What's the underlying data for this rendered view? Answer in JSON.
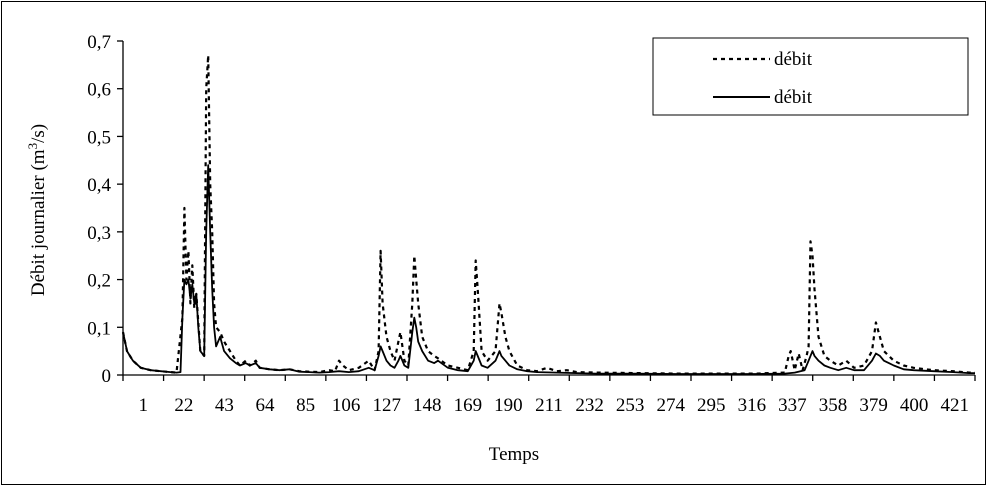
{
  "chart_data": {
    "type": "line",
    "title": "",
    "xlabel": "Temps",
    "ylabel_main": "Débit journalier (m",
    "ylabel_sup": "3",
    "ylabel_tail": "/s)",
    "x_tick_labels": [
      "1",
      "22",
      "43",
      "64",
      "85",
      "106",
      "127",
      "148",
      "169",
      "190",
      "211",
      "232",
      "253",
      "274",
      "295",
      "316",
      "337",
      "358",
      "379",
      "400",
      "421"
    ],
    "y_tick_labels": [
      "0",
      "0,1",
      "0,2",
      "0,3",
      "0,4",
      "0,5",
      "0,6",
      "0,7"
    ],
    "xlim": [
      1,
      431
    ],
    "ylim": [
      0,
      0.7
    ],
    "grid": false,
    "legend_position": "top-right",
    "series": [
      {
        "name": "débit",
        "style": "dashed",
        "points": [
          [
            1,
            0.09
          ],
          [
            3,
            0.05
          ],
          [
            6,
            0.03
          ],
          [
            10,
            0.015
          ],
          [
            15,
            0.01
          ],
          [
            20,
            0.008
          ],
          [
            25,
            0.006
          ],
          [
            28,
            0.005
          ],
          [
            31,
            0.12
          ],
          [
            32,
            0.35
          ],
          [
            33,
            0.2
          ],
          [
            34,
            0.26
          ],
          [
            35,
            0.15
          ],
          [
            36,
            0.23
          ],
          [
            37,
            0.14
          ],
          [
            38,
            0.17
          ],
          [
            40,
            0.05
          ],
          [
            42,
            0.04
          ],
          [
            43,
            0.6
          ],
          [
            44,
            0.67
          ],
          [
            45,
            0.4
          ],
          [
            46,
            0.3
          ],
          [
            47,
            0.15
          ],
          [
            48,
            0.1
          ],
          [
            50,
            0.09
          ],
          [
            52,
            0.07
          ],
          [
            55,
            0.05
          ],
          [
            58,
            0.03
          ],
          [
            60,
            0.02
          ],
          [
            63,
            0.03
          ],
          [
            65,
            0.02
          ],
          [
            68,
            0.03
          ],
          [
            70,
            0.015
          ],
          [
            75,
            0.012
          ],
          [
            80,
            0.01
          ],
          [
            85,
            0.012
          ],
          [
            90,
            0.008
          ],
          [
            95,
            0.007
          ],
          [
            100,
            0.006
          ],
          [
            105,
            0.01
          ],
          [
            108,
            0.008
          ],
          [
            110,
            0.03
          ],
          [
            112,
            0.02
          ],
          [
            115,
            0.01
          ],
          [
            120,
            0.015
          ],
          [
            125,
            0.03
          ],
          [
            128,
            0.01
          ],
          [
            130,
            0.05
          ],
          [
            131,
            0.26
          ],
          [
            132,
            0.15
          ],
          [
            134,
            0.08
          ],
          [
            136,
            0.05
          ],
          [
            138,
            0.03
          ],
          [
            140,
            0.07
          ],
          [
            141,
            0.09
          ],
          [
            143,
            0.03
          ],
          [
            145,
            0.02
          ],
          [
            147,
            0.15
          ],
          [
            148,
            0.25
          ],
          [
            149,
            0.2
          ],
          [
            150,
            0.15
          ],
          [
            152,
            0.08
          ],
          [
            155,
            0.05
          ],
          [
            158,
            0.04
          ],
          [
            160,
            0.035
          ],
          [
            165,
            0.02
          ],
          [
            170,
            0.015
          ],
          [
            175,
            0.01
          ],
          [
            178,
            0.05
          ],
          [
            179,
            0.24
          ],
          [
            180,
            0.18
          ],
          [
            182,
            0.05
          ],
          [
            185,
            0.03
          ],
          [
            189,
            0.05
          ],
          [
            191,
            0.15
          ],
          [
            192,
            0.13
          ],
          [
            194,
            0.08
          ],
          [
            196,
            0.05
          ],
          [
            200,
            0.02
          ],
          [
            205,
            0.01
          ],
          [
            210,
            0.008
          ],
          [
            215,
            0.015
          ],
          [
            220,
            0.008
          ],
          [
            225,
            0.01
          ],
          [
            230,
            0.006
          ],
          [
            240,
            0.005
          ],
          [
            260,
            0.004
          ],
          [
            280,
            0.003
          ],
          [
            300,
            0.003
          ],
          [
            320,
            0.003
          ],
          [
            335,
            0.005
          ],
          [
            337,
            0.04
          ],
          [
            338,
            0.05
          ],
          [
            340,
            0.01
          ],
          [
            342,
            0.045
          ],
          [
            344,
            0.01
          ],
          [
            346,
            0.04
          ],
          [
            347,
            0.06
          ],
          [
            348,
            0.28
          ],
          [
            349,
            0.25
          ],
          [
            350,
            0.18
          ],
          [
            352,
            0.08
          ],
          [
            355,
            0.04
          ],
          [
            358,
            0.03
          ],
          [
            362,
            0.02
          ],
          [
            366,
            0.03
          ],
          [
            370,
            0.015
          ],
          [
            375,
            0.02
          ],
          [
            379,
            0.05
          ],
          [
            381,
            0.11
          ],
          [
            383,
            0.08
          ],
          [
            385,
            0.05
          ],
          [
            390,
            0.03
          ],
          [
            395,
            0.02
          ],
          [
            400,
            0.015
          ],
          [
            410,
            0.01
          ],
          [
            420,
            0.008
          ],
          [
            428,
            0.005
          ],
          [
            431,
            0.005
          ]
        ]
      },
      {
        "name": "débit",
        "style": "solid",
        "points": [
          [
            1,
            0.09
          ],
          [
            3,
            0.05
          ],
          [
            6,
            0.03
          ],
          [
            10,
            0.015
          ],
          [
            15,
            0.01
          ],
          [
            20,
            0.008
          ],
          [
            25,
            0.006
          ],
          [
            28,
            0.005
          ],
          [
            30,
            0.006
          ],
          [
            31,
            0.12
          ],
          [
            32,
            0.2
          ],
          [
            33,
            0.19
          ],
          [
            34,
            0.2
          ],
          [
            35,
            0.16
          ],
          [
            36,
            0.19
          ],
          [
            37,
            0.15
          ],
          [
            38,
            0.17
          ],
          [
            39,
            0.1
          ],
          [
            40,
            0.05
          ],
          [
            42,
            0.04
          ],
          [
            43,
            0.3
          ],
          [
            44,
            0.44
          ],
          [
            45,
            0.3
          ],
          [
            46,
            0.18
          ],
          [
            47,
            0.1
          ],
          [
            48,
            0.06
          ],
          [
            50,
            0.08
          ],
          [
            52,
            0.05
          ],
          [
            55,
            0.035
          ],
          [
            58,
            0.025
          ],
          [
            60,
            0.02
          ],
          [
            63,
            0.025
          ],
          [
            65,
            0.02
          ],
          [
            68,
            0.025
          ],
          [
            70,
            0.015
          ],
          [
            75,
            0.012
          ],
          [
            80,
            0.01
          ],
          [
            85,
            0.012
          ],
          [
            90,
            0.007
          ],
          [
            95,
            0.006
          ],
          [
            100,
            0.005
          ],
          [
            105,
            0.006
          ],
          [
            110,
            0.008
          ],
          [
            115,
            0.006
          ],
          [
            120,
            0.008
          ],
          [
            125,
            0.015
          ],
          [
            128,
            0.01
          ],
          [
            130,
            0.04
          ],
          [
            131,
            0.06
          ],
          [
            132,
            0.05
          ],
          [
            134,
            0.03
          ],
          [
            136,
            0.02
          ],
          [
            138,
            0.015
          ],
          [
            140,
            0.03
          ],
          [
            141,
            0.04
          ],
          [
            143,
            0.02
          ],
          [
            145,
            0.015
          ],
          [
            147,
            0.09
          ],
          [
            148,
            0.12
          ],
          [
            149,
            0.1
          ],
          [
            150,
            0.07
          ],
          [
            152,
            0.05
          ],
          [
            155,
            0.03
          ],
          [
            158,
            0.025
          ],
          [
            160,
            0.03
          ],
          [
            165,
            0.015
          ],
          [
            170,
            0.01
          ],
          [
            175,
            0.008
          ],
          [
            178,
            0.03
          ],
          [
            179,
            0.05
          ],
          [
            180,
            0.04
          ],
          [
            182,
            0.02
          ],
          [
            185,
            0.015
          ],
          [
            189,
            0.03
          ],
          [
            191,
            0.05
          ],
          [
            192,
            0.04
          ],
          [
            194,
            0.03
          ],
          [
            196,
            0.02
          ],
          [
            200,
            0.012
          ],
          [
            205,
            0.008
          ],
          [
            210,
            0.006
          ],
          [
            220,
            0.005
          ],
          [
            230,
            0.004
          ],
          [
            240,
            0.003
          ],
          [
            260,
            0.003
          ],
          [
            280,
            0.002
          ],
          [
            300,
            0.002
          ],
          [
            320,
            0.002
          ],
          [
            335,
            0.003
          ],
          [
            340,
            0.005
          ],
          [
            345,
            0.01
          ],
          [
            347,
            0.03
          ],
          [
            348,
            0.04
          ],
          [
            349,
            0.05
          ],
          [
            350,
            0.04
          ],
          [
            352,
            0.03
          ],
          [
            355,
            0.02
          ],
          [
            358,
            0.015
          ],
          [
            362,
            0.01
          ],
          [
            366,
            0.015
          ],
          [
            370,
            0.01
          ],
          [
            375,
            0.01
          ],
          [
            379,
            0.03
          ],
          [
            381,
            0.045
          ],
          [
            383,
            0.04
          ],
          [
            385,
            0.03
          ],
          [
            390,
            0.02
          ],
          [
            395,
            0.012
          ],
          [
            400,
            0.01
          ],
          [
            410,
            0.008
          ],
          [
            420,
            0.006
          ],
          [
            428,
            0.004
          ],
          [
            431,
            0.004
          ]
        ]
      }
    ]
  }
}
